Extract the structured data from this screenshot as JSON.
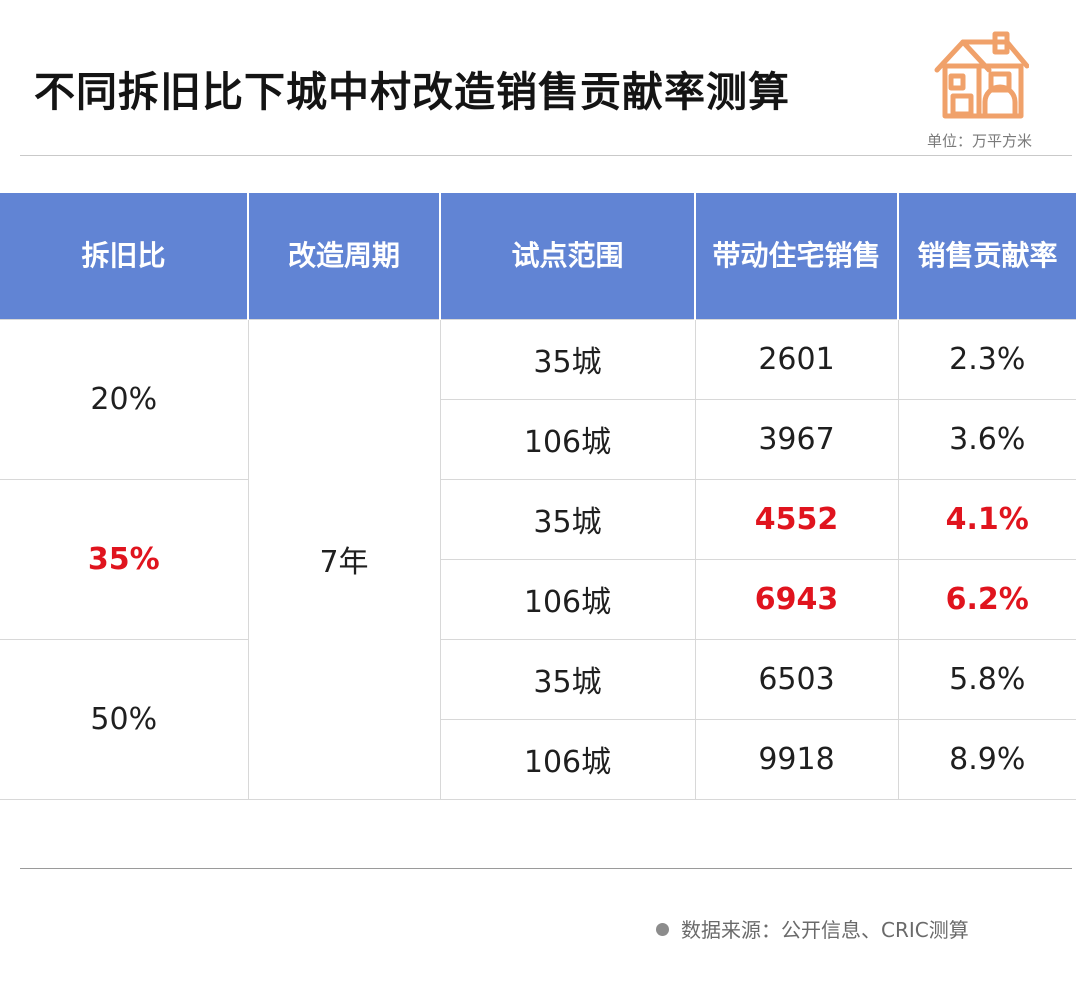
{
  "title": "不同拆旧比下城中村改造销售贡献率测算",
  "unit": "单位：万平方米",
  "source": "数据来源：公开信息、CRIC测算",
  "colors": {
    "header_bg": "#6184d4",
    "highlight": "#e0141e",
    "logo": "#f0a16a"
  },
  "logo_icon": "house-icon",
  "chart_data": {
    "type": "table",
    "columns": [
      "拆旧比",
      "改造周期",
      "试点范围",
      "带动住宅销售",
      "销售贡献率"
    ],
    "cycle": "7年",
    "groups": [
      {
        "ratio": "20%",
        "highlight": false,
        "rows": [
          {
            "scope": "35城",
            "sales": "2601",
            "rate": "2.3%"
          },
          {
            "scope": "106城",
            "sales": "3967",
            "rate": "3.6%"
          }
        ]
      },
      {
        "ratio": "35%",
        "highlight": true,
        "rows": [
          {
            "scope": "35城",
            "sales": "4552",
            "rate": "4.1%"
          },
          {
            "scope": "106城",
            "sales": "6943",
            "rate": "6.2%"
          }
        ]
      },
      {
        "ratio": "50%",
        "highlight": false,
        "rows": [
          {
            "scope": "35城",
            "sales": "6503",
            "rate": "5.8%"
          },
          {
            "scope": "106城",
            "sales": "9918",
            "rate": "8.9%"
          }
        ]
      }
    ]
  }
}
